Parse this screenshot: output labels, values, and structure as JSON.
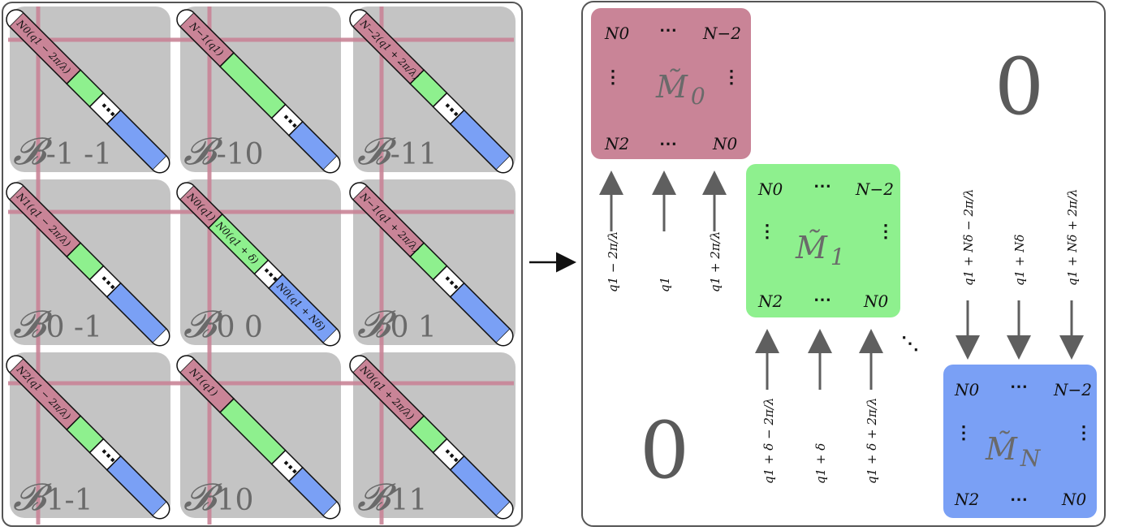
{
  "colors": {
    "block_bg": "#c4c4c4",
    "pink": "#c98497",
    "green": "#8ef08e",
    "blue": "#7aa0f5",
    "frame": "#555555",
    "arrow": "#5f5f5f"
  },
  "left_panel": {
    "blocks": [
      {
        "name": "𝓑",
        "sub": "-1 -1",
        "diag_label": "N0(q1 − 2π/λ)"
      },
      {
        "name": "𝓑",
        "sub": "-10",
        "diag_label": "N−1(q1)"
      },
      {
        "name": "𝓑",
        "sub": "-11",
        "diag_label": "N−2(q1 + 2π/λ)"
      },
      {
        "name": "𝓑",
        "sub": "0 -1",
        "diag_label": "N1(q1 − 2π/λ)"
      },
      {
        "name": "𝓑",
        "sub": "0 0",
        "diag_label": "N0(q1)"
      },
      {
        "name": "𝓑",
        "sub": "0 1",
        "diag_label": "N−1(q1 + 2π/λ)"
      },
      {
        "name": "𝓑",
        "sub": "1-1",
        "diag_label": "N2(q1 − 2π/λ)"
      },
      {
        "name": "𝓑",
        "sub": "10",
        "diag_label": "N1(q1)"
      },
      {
        "name": "𝓑",
        "sub": "11",
        "diag_label": "N0(q1 + 2π/λ)"
      }
    ],
    "center_extra": {
      "green_label": "N0(q1 + δ)",
      "blue_label": "N0(q1 + Nδ)",
      "dots": "⋯"
    }
  },
  "right_panel": {
    "zero_top": "0",
    "zero_bottom": "0",
    "between_dots": "⋱",
    "matrices": [
      {
        "label": "M̃",
        "sub": "0",
        "tl": "N0",
        "tr": "N−2",
        "bl": "N2",
        "br": "N0",
        "hdots": "⋯",
        "vdots": "⋮"
      },
      {
        "label": "M̃",
        "sub": "1",
        "tl": "N0",
        "tr": "N−2",
        "bl": "N2",
        "br": "N0",
        "hdots": "⋯",
        "vdots": "⋮"
      },
      {
        "label": "M̃",
        "sub": "N",
        "tl": "N0",
        "tr": "N−2",
        "bl": "N2",
        "br": "N0",
        "hdots": "⋯",
        "vdots": "⋮"
      }
    ],
    "arrows_group0": [
      "q1 − 2π/λ",
      "q1",
      "q1 + 2π/λ"
    ],
    "arrows_group1": [
      "q1 + δ − 2π/λ",
      "q1 + δ",
      "q1 + δ + 2π/λ"
    ],
    "arrows_groupN": [
      "q1 + Nδ − 2π/λ",
      "q1 + Nδ",
      "q1 + Nδ + 2π/λ"
    ]
  }
}
